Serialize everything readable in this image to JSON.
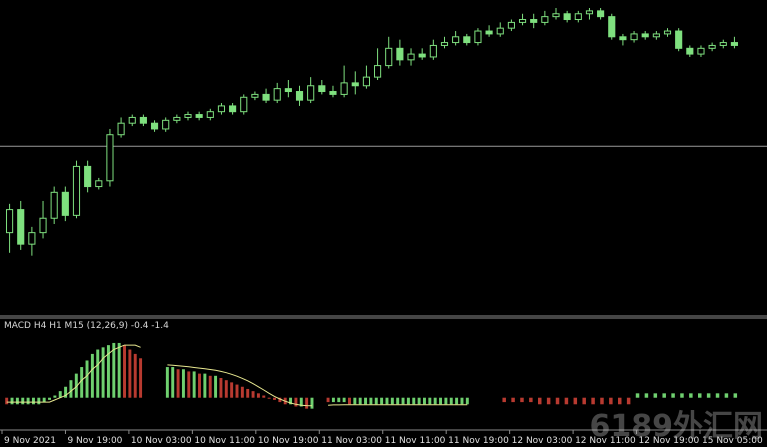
{
  "chart_data": [
    {
      "type": "candlestick",
      "colors": {
        "up": "#000000",
        "down": "#7fe07f",
        "wick": "#7fe07f",
        "hline": "#9a9a9a"
      },
      "horizontal_line": 0.52,
      "candles": [
        [
          0.22,
          0.3,
          0.15,
          0.32
        ],
        [
          0.3,
          0.18,
          0.16,
          0.33
        ],
        [
          0.18,
          0.22,
          0.14,
          0.24
        ],
        [
          0.22,
          0.27,
          0.2,
          0.33
        ],
        [
          0.27,
          0.36,
          0.25,
          0.38
        ],
        [
          0.36,
          0.28,
          0.26,
          0.38
        ],
        [
          0.28,
          0.45,
          0.27,
          0.47
        ],
        [
          0.45,
          0.38,
          0.36,
          0.47
        ],
        [
          0.38,
          0.4,
          0.37,
          0.41
        ],
        [
          0.4,
          0.56,
          0.38,
          0.58
        ],
        [
          0.56,
          0.6,
          0.55,
          0.62
        ],
        [
          0.6,
          0.62,
          0.59,
          0.63
        ],
        [
          0.62,
          0.6,
          0.59,
          0.63
        ],
        [
          0.6,
          0.58,
          0.57,
          0.61
        ],
        [
          0.58,
          0.61,
          0.57,
          0.62
        ],
        [
          0.61,
          0.62,
          0.6,
          0.63
        ],
        [
          0.62,
          0.63,
          0.61,
          0.64
        ],
        [
          0.63,
          0.62,
          0.61,
          0.64
        ],
        [
          0.62,
          0.64,
          0.61,
          0.65
        ],
        [
          0.64,
          0.66,
          0.63,
          0.67
        ],
        [
          0.66,
          0.64,
          0.63,
          0.67
        ],
        [
          0.64,
          0.69,
          0.63,
          0.7
        ],
        [
          0.69,
          0.7,
          0.68,
          0.71
        ],
        [
          0.7,
          0.68,
          0.67,
          0.72
        ],
        [
          0.68,
          0.72,
          0.67,
          0.74
        ],
        [
          0.72,
          0.71,
          0.69,
          0.75
        ],
        [
          0.71,
          0.68,
          0.66,
          0.73
        ],
        [
          0.68,
          0.73,
          0.67,
          0.76
        ],
        [
          0.73,
          0.71,
          0.7,
          0.75
        ],
        [
          0.71,
          0.7,
          0.69,
          0.73
        ],
        [
          0.7,
          0.74,
          0.69,
          0.8
        ],
        [
          0.74,
          0.73,
          0.7,
          0.78
        ],
        [
          0.73,
          0.76,
          0.72,
          0.8
        ],
        [
          0.76,
          0.8,
          0.75,
          0.86
        ],
        [
          0.8,
          0.86,
          0.79,
          0.9
        ],
        [
          0.86,
          0.82,
          0.8,
          0.89
        ],
        [
          0.82,
          0.84,
          0.8,
          0.86
        ],
        [
          0.84,
          0.83,
          0.82,
          0.86
        ],
        [
          0.83,
          0.87,
          0.82,
          0.89
        ],
        [
          0.87,
          0.88,
          0.86,
          0.9
        ],
        [
          0.88,
          0.9,
          0.87,
          0.92
        ],
        [
          0.9,
          0.88,
          0.87,
          0.91
        ],
        [
          0.88,
          0.92,
          0.87,
          0.93
        ],
        [
          0.92,
          0.91,
          0.9,
          0.94
        ],
        [
          0.91,
          0.93,
          0.9,
          0.95
        ],
        [
          0.93,
          0.95,
          0.92,
          0.96
        ],
        [
          0.95,
          0.96,
          0.94,
          0.98
        ],
        [
          0.96,
          0.95,
          0.93,
          0.98
        ],
        [
          0.95,
          0.97,
          0.94,
          0.99
        ],
        [
          0.97,
          0.98,
          0.96,
          1.0
        ],
        [
          0.98,
          0.96,
          0.95,
          0.99
        ],
        [
          0.96,
          0.98,
          0.95,
          0.99
        ],
        [
          0.98,
          0.99,
          0.96,
          1.0
        ],
        [
          0.99,
          0.97,
          0.96,
          1.0
        ],
        [
          0.97,
          0.9,
          0.89,
          0.98
        ],
        [
          0.9,
          0.89,
          0.87,
          0.91
        ],
        [
          0.89,
          0.91,
          0.88,
          0.92
        ],
        [
          0.91,
          0.9,
          0.89,
          0.92
        ],
        [
          0.9,
          0.91,
          0.89,
          0.92
        ],
        [
          0.91,
          0.92,
          0.9,
          0.93
        ],
        [
          0.92,
          0.86,
          0.85,
          0.93
        ],
        [
          0.86,
          0.84,
          0.83,
          0.87
        ],
        [
          0.84,
          0.86,
          0.83,
          0.87
        ],
        [
          0.86,
          0.87,
          0.85,
          0.88
        ],
        [
          0.87,
          0.88,
          0.86,
          0.89
        ],
        [
          0.88,
          0.87,
          0.86,
          0.9
        ]
      ]
    },
    {
      "type": "bar",
      "title": "MACD H4 H1 M15 (12,26,9) -0.4 -1.4",
      "colors": {
        "up": "#6fd06f",
        "down": "#b83a30",
        "signal": "#e8e890"
      },
      "ylim": [
        -12,
        30
      ],
      "histogram": [
        -3,
        -3,
        -3,
        -3,
        -3,
        -3,
        -3,
        -2,
        -1,
        1,
        3,
        5,
        8,
        11,
        14,
        17,
        20,
        22,
        23,
        24,
        25,
        25,
        24,
        22,
        20,
        18,
        null,
        null,
        null,
        null,
        14,
        14,
        13,
        13,
        12,
        12,
        11,
        11,
        10,
        10,
        9,
        8,
        7,
        6,
        5,
        4,
        3,
        2,
        1,
        0,
        -1,
        -2,
        -3,
        -3,
        -4,
        -4,
        -5,
        -5,
        null,
        null,
        -2,
        -2,
        -2,
        -2,
        -3,
        -3,
        -3,
        -3,
        -3,
        -3,
        -3,
        -3,
        -3,
        -3,
        -3,
        -3,
        -3,
        -3,
        -3,
        -3,
        -3,
        -3,
        -3,
        -3,
        -3,
        -3,
        -3
      ],
      "signal": [
        -2,
        -2,
        -2,
        -2,
        -2,
        -2,
        -2,
        -2,
        -2,
        -1,
        0,
        1,
        3,
        5,
        8,
        10,
        13,
        15,
        18,
        20,
        22,
        23,
        24,
        24,
        24,
        23,
        null,
        null,
        null,
        null,
        15,
        14.8,
        14.6,
        14.4,
        14.1,
        13.8,
        13.5,
        13.2,
        12.9,
        12.5,
        12,
        11.4,
        10.7,
        9.8,
        8.8,
        7.7,
        6.4,
        5,
        3.5,
        2,
        0.6,
        -0.6,
        -1.6,
        -2.4,
        -3,
        -3.4,
        -3.6,
        -3.7,
        null,
        null,
        -3.4,
        -3.3,
        -3.3,
        -3.2,
        -3.2,
        -3.2,
        -3.2,
        -3.2,
        -3.2,
        -3.2,
        -3.2,
        -3.2,
        -3.2,
        -3.2,
        -3.2,
        -3.2,
        -3.2,
        -3.2,
        -3.2,
        -3.2,
        -3.2,
        -3.2,
        -3.2,
        -3.2,
        -3.2,
        -3.2,
        -3.2
      ]
    }
  ],
  "x_axis": {
    "labels": [
      "9 Nov 2021",
      "9 Nov 19:00",
      "10 Nov 03:00",
      "10 Nov 11:00",
      "10 Nov 19:00",
      "11 Nov 03:00",
      "11 Nov 11:00",
      "11 Nov 19:00",
      "12 Nov 03:00",
      "12 Nov 11:00",
      "12 Nov 19:00",
      "15 Nov 05:00"
    ]
  },
  "watermark": "6189外汇网"
}
